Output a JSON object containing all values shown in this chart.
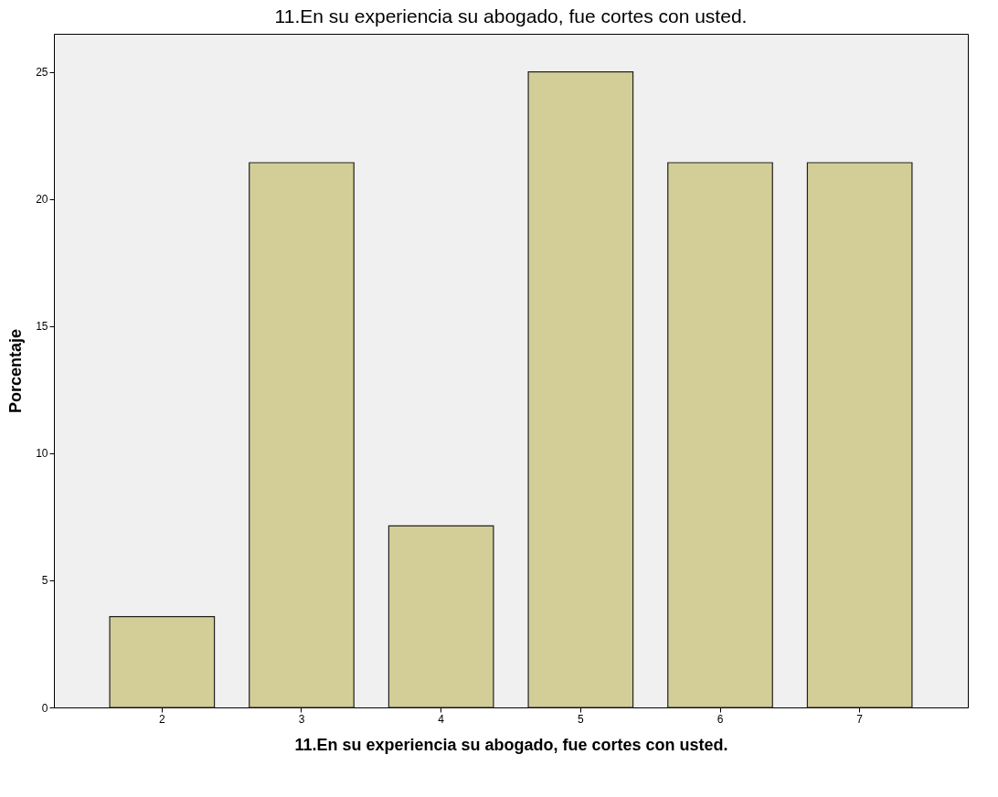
{
  "chart_data": {
    "type": "bar",
    "title": "11.En su experiencia su abogado, fue  cortes con usted.",
    "xlabel": "11.En su experiencia su abogado, fue  cortes con usted.",
    "ylabel": "Porcentaje",
    "categories": [
      "2",
      "3",
      "4",
      "5",
      "6",
      "7"
    ],
    "values": [
      3.57,
      21.43,
      7.14,
      25,
      21.43,
      21.43
    ],
    "color": "#d3ce97",
    "ylim": [
      0,
      26.5
    ],
    "yticks": [
      0,
      5,
      10,
      15,
      20,
      25
    ],
    "grid": false
  }
}
